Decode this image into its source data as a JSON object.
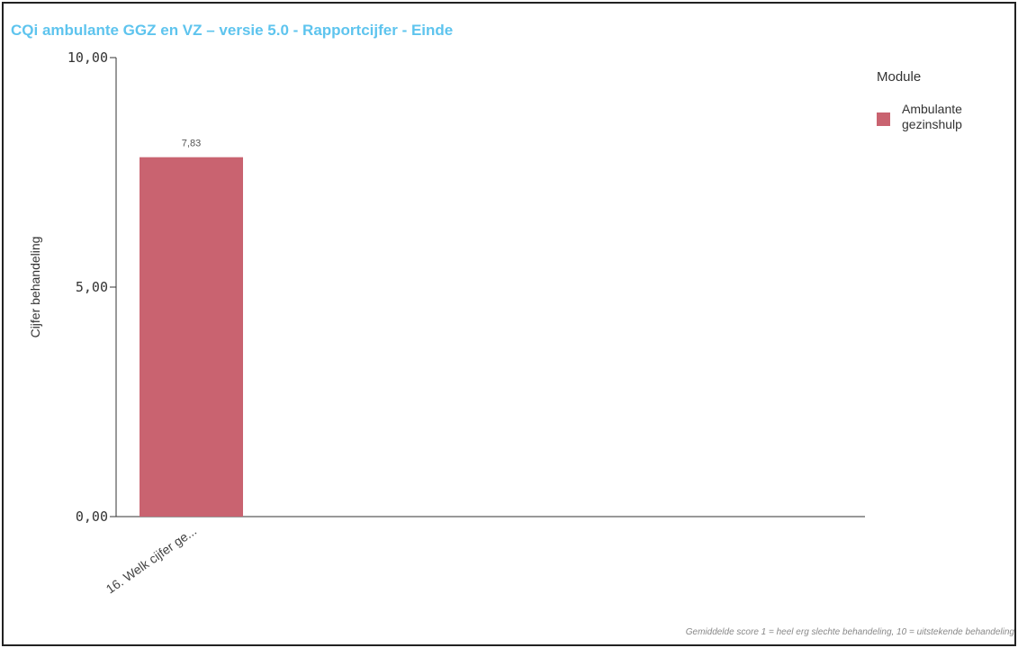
{
  "title": "CQi ambulante GGZ en VZ – versie 5.0 - Rapportcijfer - Einde",
  "footnote": "Gemiddelde score 1 = heel erg slechte behandeling, 10 = uitstekende behandeling",
  "legend": {
    "title": "Module",
    "items": [
      {
        "label": "Ambulante gezinshulp",
        "color": "#c96370"
      }
    ]
  },
  "chart_data": {
    "type": "bar",
    "ylabel": "Cijfer behandeling",
    "xlabel": "",
    "ylim": [
      0,
      10
    ],
    "yticks": [
      0,
      5,
      10
    ],
    "ytick_labels": [
      "0,00",
      "5,00",
      "10,00"
    ],
    "categories": [
      "16. Welk cijfer ge..."
    ],
    "series": [
      {
        "name": "Ambulante gezinshulp",
        "values": [
          7.83
        ],
        "value_labels": [
          "7,83"
        ],
        "color": "#c96370"
      }
    ]
  }
}
